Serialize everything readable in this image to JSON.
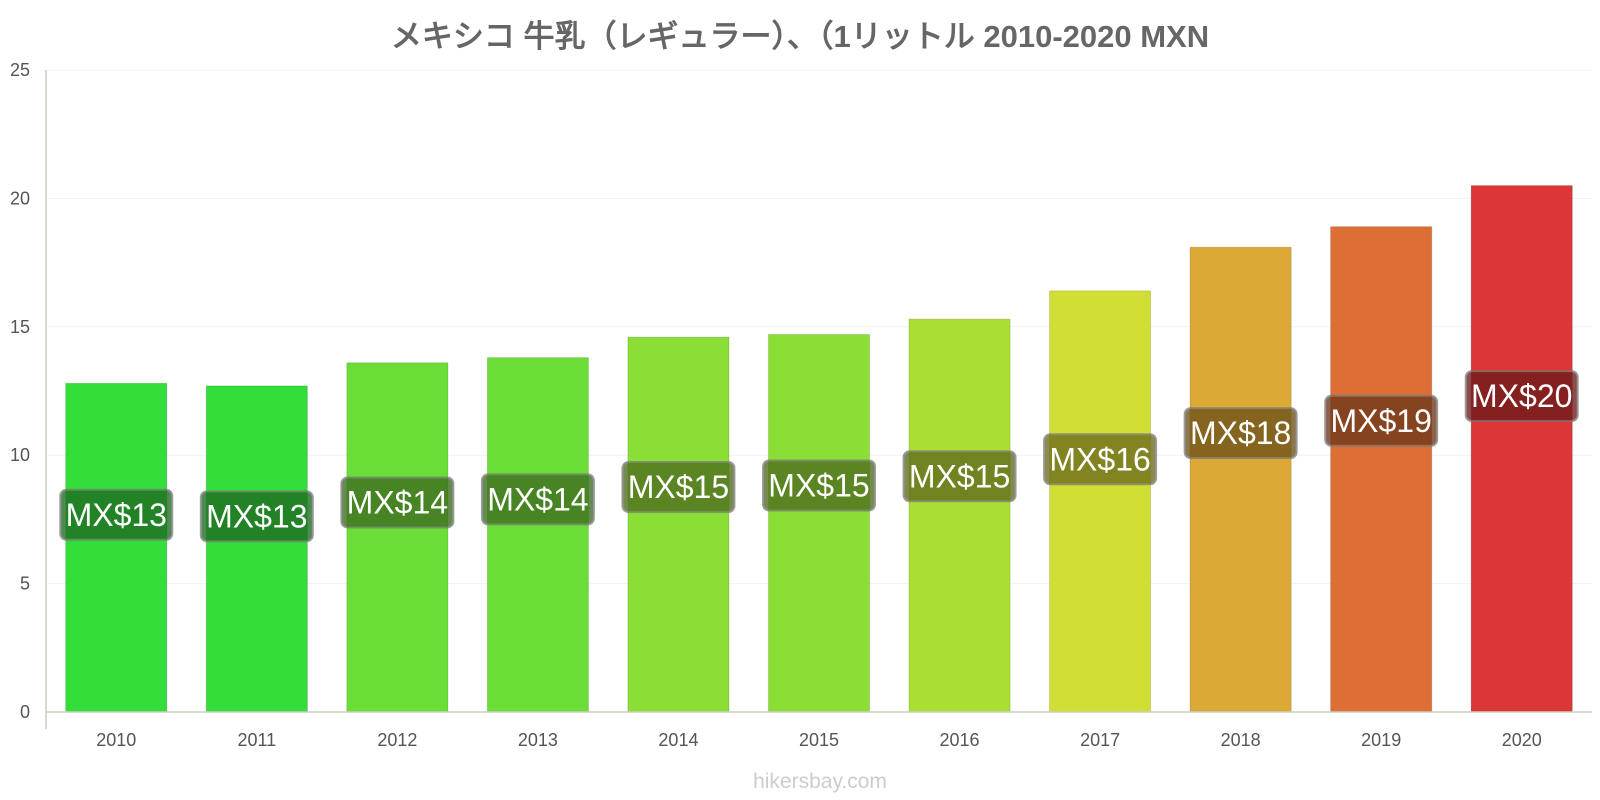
{
  "chart_data": {
    "type": "bar",
    "title": "メキシコ 牛乳（レギュラー）、（1リットル 2010-2020 MXN",
    "categories": [
      "2010",
      "2011",
      "2012",
      "2013",
      "2014",
      "2015",
      "2016",
      "2017",
      "2018",
      "2019",
      "2020"
    ],
    "values": [
      12.8,
      12.7,
      13.6,
      13.8,
      14.6,
      14.7,
      15.3,
      16.4,
      18.1,
      18.9,
      20.5
    ],
    "data_labels": [
      "MX$13",
      "MX$13",
      "MX$14",
      "MX$14",
      "MX$15",
      "MX$15",
      "MX$15",
      "MX$16",
      "MX$18",
      "MX$19",
      "MX$20"
    ],
    "colors": [
      "#33dd3a",
      "#33dd3a",
      "#6ade37",
      "#6ade37",
      "#8ade35",
      "#8ade35",
      "#abde33",
      "#d1de33",
      "#dca836",
      "#dc6e36",
      "#dc3636"
    ],
    "label_bg_colors": [
      "#1d6b21",
      "#1d6b21",
      "#3c6b1f",
      "#3c6b1f",
      "#4f6b1e",
      "#4f6b1e",
      "#5f6b1d",
      "#6c6b1d",
      "#6d521b",
      "#6d371b",
      "#6d1b1b"
    ],
    "yticks": [
      0,
      5,
      10,
      15,
      20,
      25
    ],
    "ylim": [
      0,
      25
    ],
    "grid": true,
    "legend": "none",
    "xlabel": "",
    "ylabel": ""
  },
  "watermark": "hikersbay.com"
}
